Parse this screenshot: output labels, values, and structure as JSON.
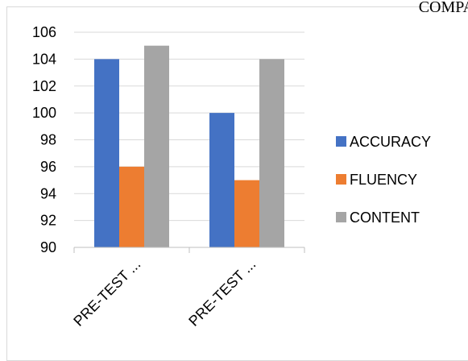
{
  "page": {
    "top_caption": "COMPA"
  },
  "chart_data": {
    "type": "bar",
    "categories": [
      "PRE-TEST ...",
      "PRE-TEST ..."
    ],
    "series": [
      {
        "name": "ACCURACY",
        "values": [
          104,
          100
        ],
        "color": "#4472c4"
      },
      {
        "name": "FLUENCY",
        "values": [
          96,
          95
        ],
        "color": "#ed7d31"
      },
      {
        "name": "CONTENT",
        "values": [
          105,
          104
        ],
        "color": "#a5a5a5"
      }
    ],
    "ylim": [
      90,
      106
    ],
    "yticks": [
      90,
      92,
      94,
      96,
      98,
      100,
      102,
      104,
      106
    ],
    "grid": true,
    "legend_position": "right",
    "title": "",
    "xlabel": "",
    "ylabel": ""
  }
}
